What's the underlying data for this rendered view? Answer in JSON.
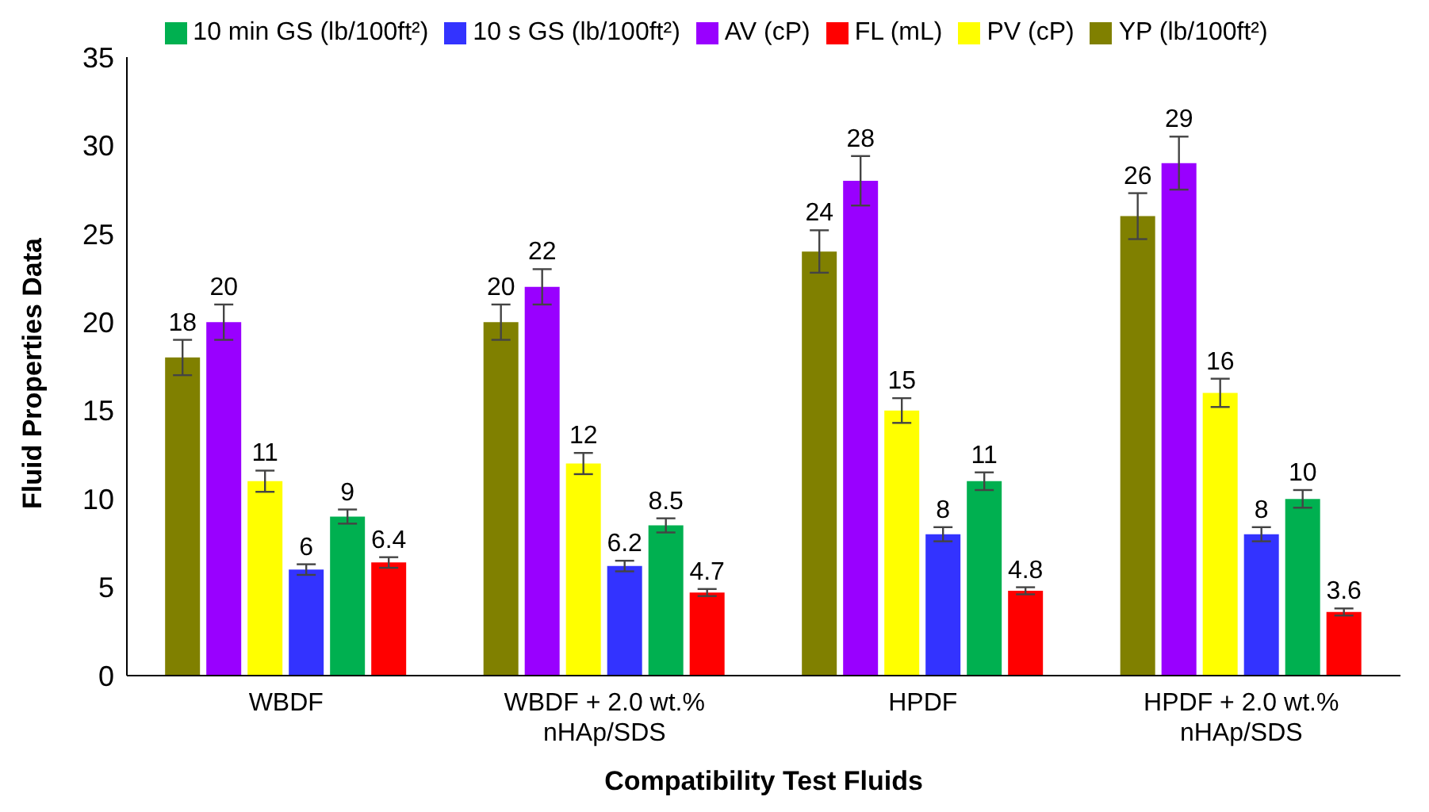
{
  "chart_data": {
    "type": "bar",
    "xlabel": "Compatibility Test Fluids",
    "ylabel": "Fluid Properties Data",
    "categories": [
      "WBDF",
      "WBDF + 2.0 wt.% nHAp/SDS",
      "HPDF",
      "HPDF + 2.0 wt.% nHAp/SDS"
    ],
    "series": [
      {
        "name": "YP (lb/100ft²)",
        "color": "#808000",
        "values": [
          18,
          20,
          24,
          26
        ],
        "errors": [
          1,
          1,
          1.2,
          1.3
        ]
      },
      {
        "name": "AV (cP)",
        "color": "#9900ff",
        "values": [
          20,
          22,
          28,
          29
        ],
        "errors": [
          1,
          1,
          1.4,
          1.5
        ]
      },
      {
        "name": "PV (cP)",
        "color": "#ffff00",
        "values": [
          11,
          12,
          15,
          16
        ],
        "errors": [
          0.6,
          0.6,
          0.7,
          0.8
        ]
      },
      {
        "name": "10 s GS (lb/100ft²)",
        "color": "#3333ff",
        "values": [
          6,
          6.2,
          8,
          8
        ],
        "errors": [
          0.3,
          0.3,
          0.4,
          0.4
        ]
      },
      {
        "name": "10 min GS (lb/100ft²)",
        "color": "#00b050",
        "values": [
          9,
          8.5,
          11,
          10
        ],
        "errors": [
          0.4,
          0.4,
          0.5,
          0.5
        ]
      },
      {
        "name": "FL (mL)",
        "color": "#ff0000",
        "values": [
          6.4,
          4.7,
          4.8,
          3.6
        ],
        "errors": [
          0.3,
          0.2,
          0.2,
          0.2
        ]
      }
    ],
    "ylim": [
      0,
      35
    ],
    "yticks": [
      0,
      5,
      10,
      15,
      20,
      25,
      30,
      35
    ],
    "grid": false,
    "legend": "top",
    "data_labels": true
  }
}
